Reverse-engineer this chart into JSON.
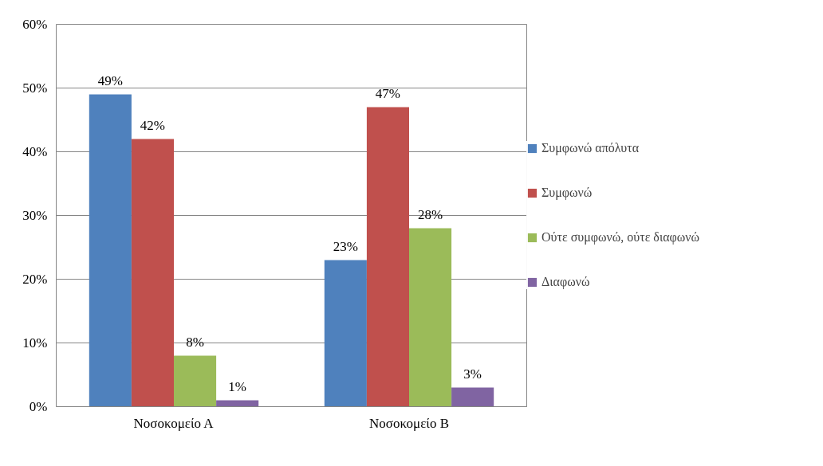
{
  "chart_data": {
    "type": "bar",
    "categories": [
      "Νοσοκομείο Α",
      "Νοσοκομείο Β"
    ],
    "series": [
      {
        "name": "Συμφωνώ απόλυτα",
        "color": "#4f81bd",
        "values": [
          49,
          23
        ],
        "value_labels": [
          "49%",
          "23%"
        ]
      },
      {
        "name": "Συμφωνώ",
        "color": "#c0504d",
        "values": [
          42,
          47
        ],
        "value_labels": [
          "42%",
          "47%"
        ]
      },
      {
        "name": "Ούτε συμφωνώ, ούτε διαφωνώ",
        "color": "#9bbb59",
        "values": [
          8,
          28
        ],
        "value_labels": [
          "8%",
          "28%"
        ]
      },
      {
        "name": "Διαφωνώ",
        "color": "#8064a2",
        "values": [
          1,
          3
        ],
        "value_labels": [
          "1%",
          "3%"
        ]
      }
    ],
    "ylim": [
      0,
      60
    ],
    "yticks": [
      {
        "value": 0,
        "label": "0%"
      },
      {
        "value": 10,
        "label": "10%"
      },
      {
        "value": 20,
        "label": "20%"
      },
      {
        "value": 30,
        "label": "30%"
      },
      {
        "value": 40,
        "label": "40%"
      },
      {
        "value": 50,
        "label": "50%"
      },
      {
        "value": 60,
        "label": "60%"
      }
    ],
    "grid": "y",
    "legend": "right"
  }
}
